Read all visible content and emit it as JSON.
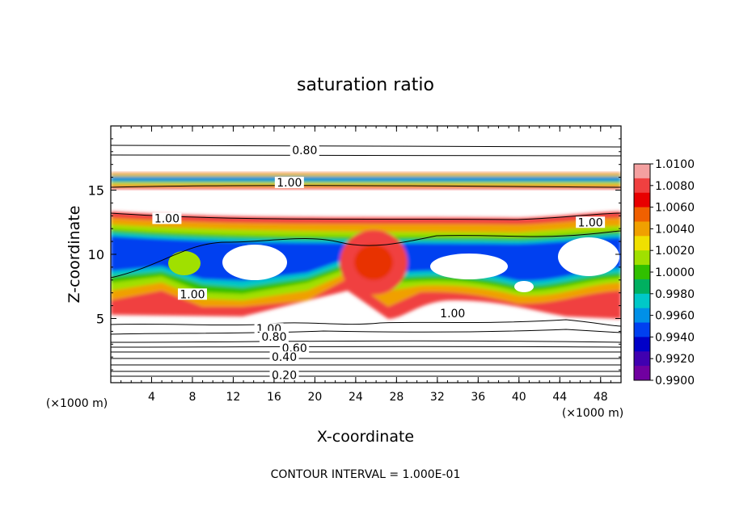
{
  "chart_data": {
    "type": "heatmap",
    "title": "saturation ratio",
    "xlabel": "X-coordinate",
    "ylabel": "Z-coordinate",
    "x_unit_left": "(×1000 m)",
    "x_unit_right": "(×1000 m)",
    "xlim": [
      0,
      50
    ],
    "ylim": [
      0,
      20
    ],
    "x_ticks": [
      4,
      8,
      12,
      16,
      20,
      24,
      28,
      32,
      36,
      40,
      44,
      48
    ],
    "y_ticks": [
      5,
      10,
      15
    ],
    "colorbar": {
      "range": [
        0.99,
        1.01
      ],
      "labels": [
        "1.0100",
        "1.0080",
        "1.0060",
        "1.0040",
        "1.0020",
        "1.0000",
        "0.9980",
        "0.9960",
        "0.9940",
        "0.9920",
        "0.9900"
      ],
      "colors": [
        "#f4a0a0",
        "#f04040",
        "#e80000",
        "#f06000",
        "#f0a000",
        "#f0e000",
        "#a0e000",
        "#30c000",
        "#00b060",
        "#00c8c8",
        "#0090e8",
        "#0040f0",
        "#0000c8",
        "#4000b0",
        "#7000a0"
      ]
    },
    "contour_interval_text": "CONTOUR INTERVAL = 1.000E-01",
    "contour_labels": [
      {
        "text": "0.80",
        "x": 19,
        "z": 18.1
      },
      {
        "text": "1.00",
        "x": 17.5,
        "z": 15.6
      },
      {
        "text": "1.00",
        "x": 5.5,
        "z": 12.8
      },
      {
        "text": "1.00",
        "x": 47,
        "z": 12.5
      },
      {
        "text": "1.00",
        "x": 8,
        "z": 6.9
      },
      {
        "text": "1.00",
        "x": 33.5,
        "z": 5.4
      },
      {
        "text": "1.00",
        "x": 15.5,
        "z": 4.2
      },
      {
        "text": "0.80",
        "x": 16,
        "z": 3.6
      },
      {
        "text": "0.60",
        "x": 18,
        "z": 2.7
      },
      {
        "text": "0.40",
        "x": 17,
        "z": 2.0
      },
      {
        "text": "0.20",
        "x": 17,
        "z": 0.6
      }
    ]
  }
}
